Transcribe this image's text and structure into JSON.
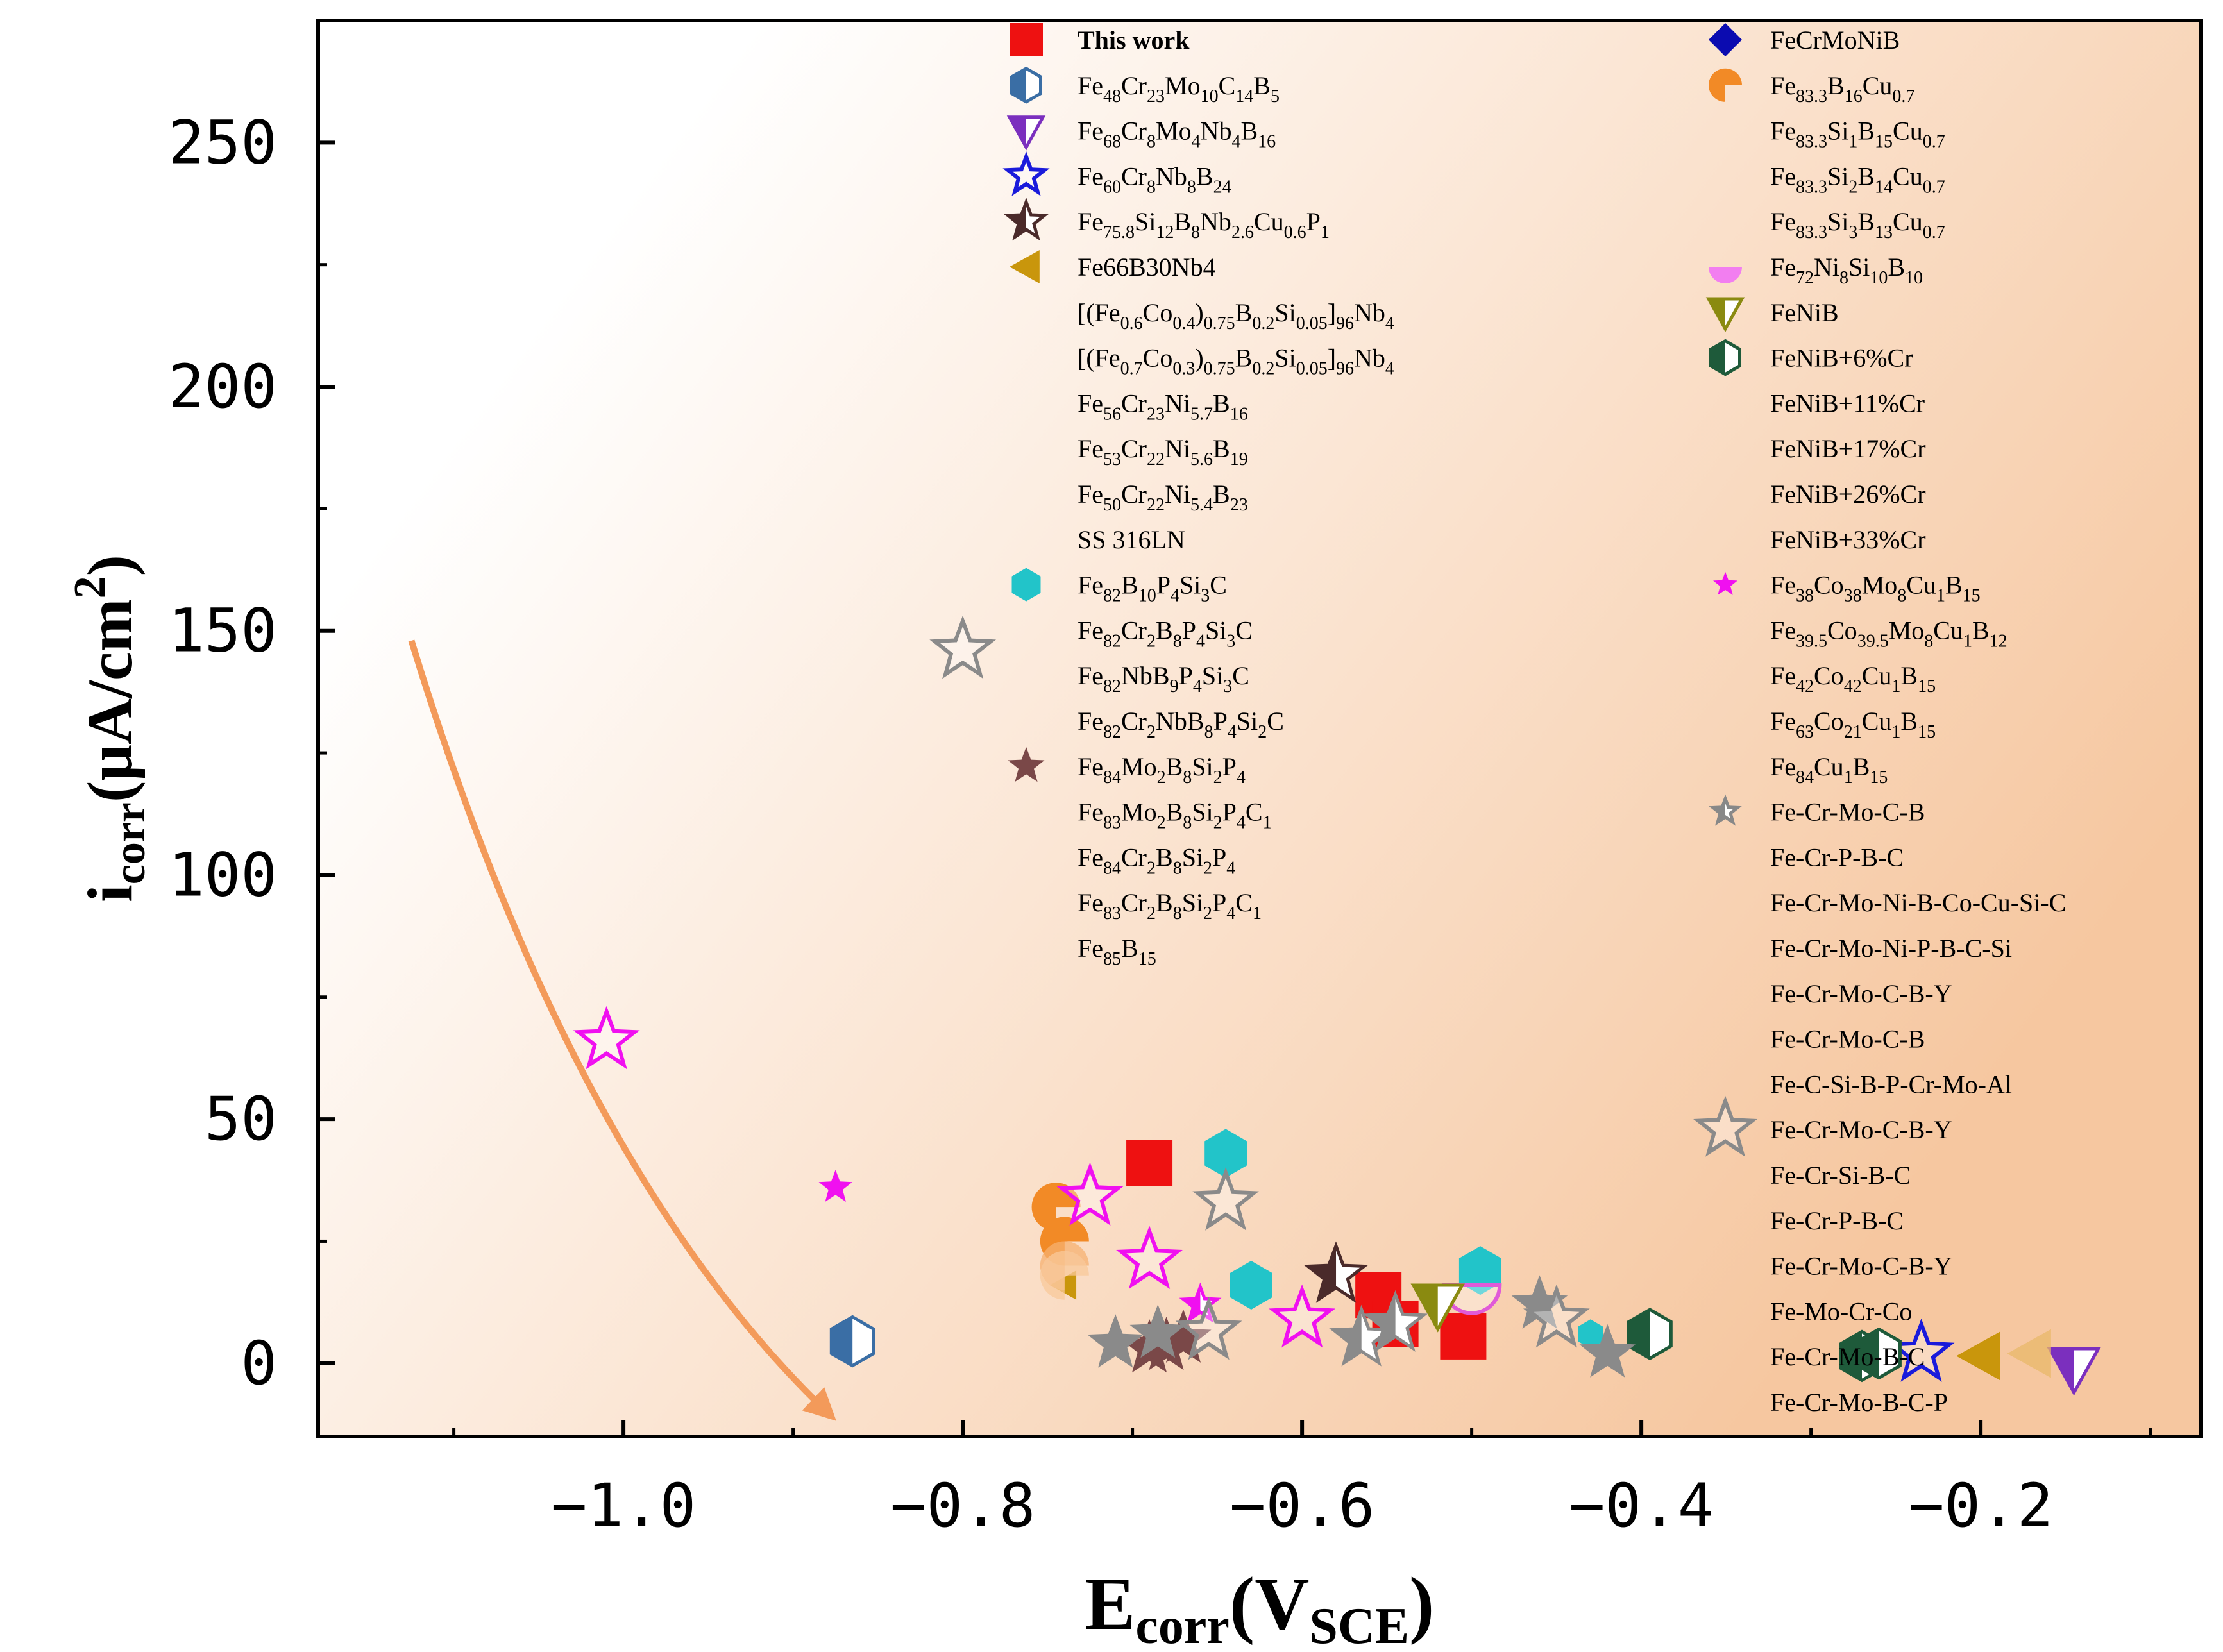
{
  "chart_data": {
    "type": "scatter",
    "xlabel": {
      "main": "E",
      "sub": "corr",
      "paren_open": "(V",
      "paren_sub": "SCE",
      "paren_close": ")"
    },
    "ylabel": {
      "main": "i",
      "sub": "corr",
      "unit_open": "(μA/cm",
      "unit_sup": "2",
      "unit_close": ")"
    },
    "xlim": [
      -1.18,
      -0.07
    ],
    "ylim": [
      -15,
      275
    ],
    "x_ticks": [
      -1.0,
      -0.8,
      -0.6,
      -0.4,
      -0.2
    ],
    "x_tick_labels": [
      "−1.0",
      "−0.8",
      "−0.6",
      "−0.4",
      "−0.2"
    ],
    "y_ticks": [
      0,
      50,
      100,
      150,
      200,
      250
    ],
    "y_tick_labels": [
      "0",
      "50",
      "100",
      "150",
      "200",
      "250"
    ],
    "background_gradient": [
      "#ffffff",
      "#f6c7a0"
    ],
    "arrow": {
      "color": "#f39a5a",
      "from": [
        -1.125,
        148
      ],
      "ctrl": [
        -1.03,
        40
      ],
      "to": [
        -0.88,
        -10
      ]
    },
    "legend_left": [
      {
        "label": "This work",
        "bold": true,
        "marker": "square",
        "color": "#ee1111",
        "fill": "solid"
      },
      {
        "label": "Fe<sub>48</sub>Cr<sub>23</sub>Mo<sub>10</sub>C<sub>14</sub>B<sub>5</sub>",
        "marker": "hexagon",
        "color": "#3a6ea5",
        "fill": "half"
      },
      {
        "label": "Fe<sub>68</sub>Cr<sub>8</sub>Mo<sub>4</sub>Nb<sub>4</sub>B<sub>16</sub>",
        "marker": "triangle-down",
        "color": "#7b2fbe",
        "fill": "half"
      },
      {
        "label": "Fe<sub>60</sub>Cr<sub>8</sub>Nb<sub>8</sub>B<sub>24</sub>",
        "marker": "star",
        "color": "#1a1adb",
        "fill": "open"
      },
      {
        "label": "Fe<sub>75.8</sub>Si<sub>12</sub>B<sub>8</sub>Nb<sub>2.6</sub>Cu<sub>0.6</sub>P<sub>1</sub>",
        "marker": "star",
        "color": "#4a2a2a",
        "fill": "half"
      },
      {
        "label": "Fe66B30Nb4",
        "marker": "triangle-left",
        "color": "#c9960c",
        "fill": "solid"
      },
      {
        "label": "[(Fe<sub>0.6</sub>Co<sub>0.4</sub>)<sub>0.75</sub>B<sub>0.2</sub>Si<sub>0.05</sub>]<sub>96</sub>Nb<sub>4</sub>",
        "marker": "none"
      },
      {
        "label": "[(Fe<sub>0.7</sub>Co<sub>0.3</sub>)<sub>0.75</sub>B<sub>0.2</sub>Si<sub>0.05</sub>]<sub>96</sub>Nb<sub>4</sub>",
        "marker": "none"
      },
      {
        "label": "Fe<sub>56</sub>Cr<sub>23</sub>Ni<sub>5.7</sub>B<sub>16</sub>",
        "marker": "none"
      },
      {
        "label": "Fe<sub>53</sub>Cr<sub>22</sub>Ni<sub>5.6</sub>B<sub>19</sub>",
        "marker": "none"
      },
      {
        "label": "Fe<sub>50</sub>Cr<sub>22</sub>Ni<sub>5.4</sub>B<sub>23</sub>",
        "marker": "none"
      },
      {
        "label": "SS 316LN",
        "marker": "none"
      },
      {
        "label": "Fe<sub>82</sub>B<sub>10</sub>P<sub>4</sub>Si<sub>3</sub>C",
        "marker": "hexagon",
        "color": "#22c4c9",
        "fill": "solid"
      },
      {
        "label": "Fe<sub>82</sub>Cr<sub>2</sub>B<sub>8</sub>P<sub>4</sub>Si<sub>3</sub>C",
        "marker": "none"
      },
      {
        "label": "Fe<sub>82</sub>NbB<sub>9</sub>P<sub>4</sub>Si<sub>3</sub>C",
        "marker": "none"
      },
      {
        "label": "Fe<sub>82</sub>Cr<sub>2</sub>NbB<sub>8</sub>P<sub>4</sub>Si<sub>2</sub>C",
        "marker": "none"
      },
      {
        "label": "Fe<sub>84</sub>Mo<sub>2</sub>B<sub>8</sub>Si<sub>2</sub>P<sub>4</sub>",
        "marker": "star",
        "color": "#7a4848",
        "fill": "solid"
      },
      {
        "label": "Fe<sub>83</sub>Mo<sub>2</sub>B<sub>8</sub>Si<sub>2</sub>P<sub>4</sub>C<sub>1</sub>",
        "marker": "none"
      },
      {
        "label": "Fe<sub>84</sub>Cr<sub>2</sub>B<sub>8</sub>Si<sub>2</sub>P<sub>4</sub>",
        "marker": "none"
      },
      {
        "label": "Fe<sub>83</sub>Cr<sub>2</sub>B<sub>8</sub>Si<sub>2</sub>P<sub>4</sub>C<sub>1</sub>",
        "marker": "none"
      },
      {
        "label": "Fe<sub>85</sub>B<sub>15</sub>",
        "marker": "none"
      }
    ],
    "legend_right": [
      {
        "label": "FeCrMoNiB",
        "marker": "diamond",
        "color": "#0b0bb0",
        "fill": "solid"
      },
      {
        "label": "Fe<sub>83.3</sub>B<sub>16</sub>Cu<sub>0.7</sub>",
        "marker": "pacman",
        "color": "#f28a26",
        "fill": "solid"
      },
      {
        "label": "Fe<sub>83.3</sub>Si<sub>1</sub>B<sub>15</sub>Cu<sub>0.7</sub>",
        "marker": "none"
      },
      {
        "label": "Fe<sub>83.3</sub>Si<sub>2</sub>B<sub>14</sub>Cu<sub>0.7</sub>",
        "marker": "none"
      },
      {
        "label": "Fe<sub>83.3</sub>Si<sub>3</sub>B<sub>13</sub>Cu<sub>0.7</sub>",
        "marker": "none"
      },
      {
        "label": "Fe<sub>72</sub>Ni<sub>8</sub>Si<sub>10</sub>B<sub>10</sub>",
        "marker": "semicircle",
        "color": "#f27ef0",
        "fill": "solid"
      },
      {
        "label": "FeNiB",
        "marker": "triangle-down",
        "color": "#8a8a10",
        "fill": "half"
      },
      {
        "label": "FeNiB+6%Cr",
        "marker": "hexagon",
        "color": "#1e5a3a",
        "fill": "half"
      },
      {
        "label": "FeNiB+11%Cr",
        "marker": "none"
      },
      {
        "label": "FeNiB+17%Cr",
        "marker": "none"
      },
      {
        "label": "FeNiB+26%Cr",
        "marker": "none"
      },
      {
        "label": "FeNiB+33%Cr",
        "marker": "none"
      },
      {
        "label": "Fe<sub>38</sub>Co<sub>38</sub>Mo<sub>8</sub>Cu<sub>1</sub>B<sub>15</sub>",
        "marker": "star",
        "color": "#f010f0",
        "fill": "solid",
        "small": true
      },
      {
        "label": "Fe<sub>39.5</sub>Co<sub>39.5</sub>Mo<sub>8</sub>Cu<sub>1</sub>B<sub>12</sub>",
        "marker": "none"
      },
      {
        "label": "Fe<sub>42</sub>Co<sub>42</sub>Cu<sub>1</sub>B<sub>15</sub>",
        "marker": "none"
      },
      {
        "label": "Fe<sub>63</sub>Co<sub>21</sub>Cu<sub>1</sub>B<sub>15</sub>",
        "marker": "none"
      },
      {
        "label": "Fe<sub>84</sub>Cu<sub>1</sub>B<sub>15</sub>",
        "marker": "none"
      },
      {
        "label": "Fe-Cr-Mo-C-B",
        "marker": "star",
        "color": "#888888",
        "fill": "half",
        "small": true
      },
      {
        "label": "Fe-Cr-P-B-C",
        "marker": "none"
      },
      {
        "label": "Fe-Cr-Mo-Ni-B-Co-Cu-Si-C",
        "marker": "none"
      },
      {
        "label": "Fe-Cr-Mo-Ni-P-B-C-Si",
        "marker": "none"
      },
      {
        "label": "Fe-Cr-Mo-C-B-Y",
        "marker": "none"
      },
      {
        "label": "Fe-Cr-Mo-C-B",
        "marker": "none"
      },
      {
        "label": "Fe-C-Si-B-P-Cr-Mo-Al",
        "marker": "none"
      },
      {
        "label": "Fe-Cr-Mo-C-B-Y",
        "marker": "star",
        "color": "#8a8a8a",
        "fill": "open",
        "big": true
      },
      {
        "label": "Fe-Cr-Si-B-C",
        "marker": "none"
      },
      {
        "label": "Fe-Cr-P-B-C",
        "marker": "none"
      },
      {
        "label": "Fe-Cr-Mo-C-B-Y",
        "marker": "none"
      },
      {
        "label": "Fe-Mo-Cr-Co",
        "marker": "none"
      },
      {
        "label": "Fe-Cr-Mo-B-C",
        "marker": "none"
      },
      {
        "label": "Fe-Cr-Mo-B-C-P",
        "marker": "none"
      }
    ],
    "points": [
      {
        "x": -0.69,
        "y": 41,
        "marker": "square",
        "color": "#ee1111",
        "fill": "solid"
      },
      {
        "x": -0.555,
        "y": 14,
        "marker": "square",
        "color": "#ee1111",
        "fill": "solid"
      },
      {
        "x": -0.545,
        "y": 8,
        "marker": "square",
        "color": "#ee1111",
        "fill": "solid"
      },
      {
        "x": -0.505,
        "y": 5.5,
        "marker": "square",
        "color": "#ee1111",
        "fill": "solid"
      },
      {
        "x": -0.865,
        "y": 4.5,
        "marker": "hexagon",
        "color": "#3a6ea5",
        "fill": "half"
      },
      {
        "x": -0.145,
        "y": -1,
        "marker": "triangle-down",
        "color": "#7b2fbe",
        "fill": "half"
      },
      {
        "x": -0.235,
        "y": 2,
        "marker": "star",
        "color": "#1a1adb",
        "fill": "open"
      },
      {
        "x": -0.58,
        "y": 18,
        "marker": "star",
        "color": "#4a2a2a",
        "fill": "half"
      },
      {
        "x": -0.2,
        "y": 1.5,
        "marker": "triangle-left",
        "color": "#c9960c",
        "fill": "solid"
      },
      {
        "x": -0.17,
        "y": 2,
        "marker": "triangle-left",
        "color": "#e8b86a",
        "fill": "light"
      },
      {
        "x": -0.74,
        "y": 16,
        "marker": "triangle-left",
        "color": "#c9960c",
        "fill": "solid",
        "small": true
      },
      {
        "x": -0.645,
        "y": 43,
        "marker": "hexagon",
        "color": "#22c4c9",
        "fill": "solid"
      },
      {
        "x": -0.63,
        "y": 16,
        "marker": "hexagon",
        "color": "#22c4c9",
        "fill": "solid"
      },
      {
        "x": -0.495,
        "y": 19,
        "marker": "hexagon",
        "color": "#22c4c9",
        "fill": "solid"
      },
      {
        "x": -0.43,
        "y": 6,
        "marker": "hexagon",
        "color": "#22c4c9",
        "fill": "solid",
        "small": true
      },
      {
        "x": -0.69,
        "y": 3,
        "marker": "star",
        "color": "#7a4848",
        "fill": "solid"
      },
      {
        "x": -0.68,
        "y": 3.5,
        "marker": "star",
        "color": "#7a4848",
        "fill": "solid"
      },
      {
        "x": -0.67,
        "y": 5,
        "marker": "star",
        "color": "#7a4848",
        "fill": "solid"
      },
      {
        "x": -0.745,
        "y": 32,
        "marker": "pacman",
        "color": "#f28a26",
        "fill": "solid"
      },
      {
        "x": -0.74,
        "y": 25,
        "marker": "pacman",
        "color": "#f28a26",
        "fill": "solid"
      },
      {
        "x": -0.74,
        "y": 20,
        "marker": "pacman",
        "color": "#f5b070",
        "fill": "light"
      },
      {
        "x": -0.74,
        "y": 18,
        "marker": "pacman",
        "color": "#f8c89a",
        "fill": "light"
      },
      {
        "x": -0.5,
        "y": 16,
        "marker": "semicircle",
        "color": "#e05ad8",
        "fill": "open",
        "big": true
      },
      {
        "x": -0.52,
        "y": 12,
        "marker": "triangle-down",
        "color": "#8a8a10",
        "fill": "half"
      },
      {
        "x": -0.395,
        "y": 6,
        "marker": "hexagon",
        "color": "#1e5a3a",
        "fill": "half"
      },
      {
        "x": -0.27,
        "y": 1.5,
        "marker": "hexagon",
        "color": "#1e5a3a",
        "fill": "half"
      },
      {
        "x": -0.26,
        "y": 2,
        "marker": "hexagon",
        "color": "#1e5a3a",
        "fill": "half"
      },
      {
        "x": -1.01,
        "y": 66,
        "marker": "star",
        "color": "#f010f0",
        "fill": "open"
      },
      {
        "x": -0.875,
        "y": 36,
        "marker": "star",
        "color": "#f010f0",
        "fill": "solid",
        "small": true
      },
      {
        "x": -0.725,
        "y": 34,
        "marker": "star",
        "color": "#f010f0",
        "fill": "open"
      },
      {
        "x": -0.69,
        "y": 21,
        "marker": "star",
        "color": "#f010f0",
        "fill": "open"
      },
      {
        "x": -0.66,
        "y": 12,
        "marker": "star",
        "color": "#f010f0",
        "fill": "half",
        "small": true
      },
      {
        "x": -0.6,
        "y": 9,
        "marker": "star",
        "color": "#f010f0",
        "fill": "open"
      },
      {
        "x": -0.8,
        "y": 146,
        "marker": "star",
        "color": "#8a8a8a",
        "fill": "open"
      },
      {
        "x": -0.645,
        "y": 33,
        "marker": "star",
        "color": "#8a8a8a",
        "fill": "open"
      },
      {
        "x": -0.71,
        "y": 4,
        "marker": "star",
        "color": "#8a8a8a",
        "fill": "solid"
      },
      {
        "x": -0.685,
        "y": 6,
        "marker": "star",
        "color": "#8a8a8a",
        "fill": "solid"
      },
      {
        "x": -0.655,
        "y": 6.5,
        "marker": "star",
        "color": "#8a8a8a",
        "fill": "open"
      },
      {
        "x": -0.565,
        "y": 5,
        "marker": "star",
        "color": "#8a8a8a",
        "fill": "half"
      },
      {
        "x": -0.545,
        "y": 8,
        "marker": "star",
        "color": "#8a8a8a",
        "fill": "half"
      },
      {
        "x": -0.46,
        "y": 12,
        "marker": "star",
        "color": "#8a8a8a",
        "fill": "solid"
      },
      {
        "x": -0.45,
        "y": 9,
        "marker": "star",
        "color": "#8a8a8a",
        "fill": "open"
      },
      {
        "x": -0.42,
        "y": 2,
        "marker": "star",
        "color": "#8a8a8a",
        "fill": "solid"
      }
    ]
  }
}
